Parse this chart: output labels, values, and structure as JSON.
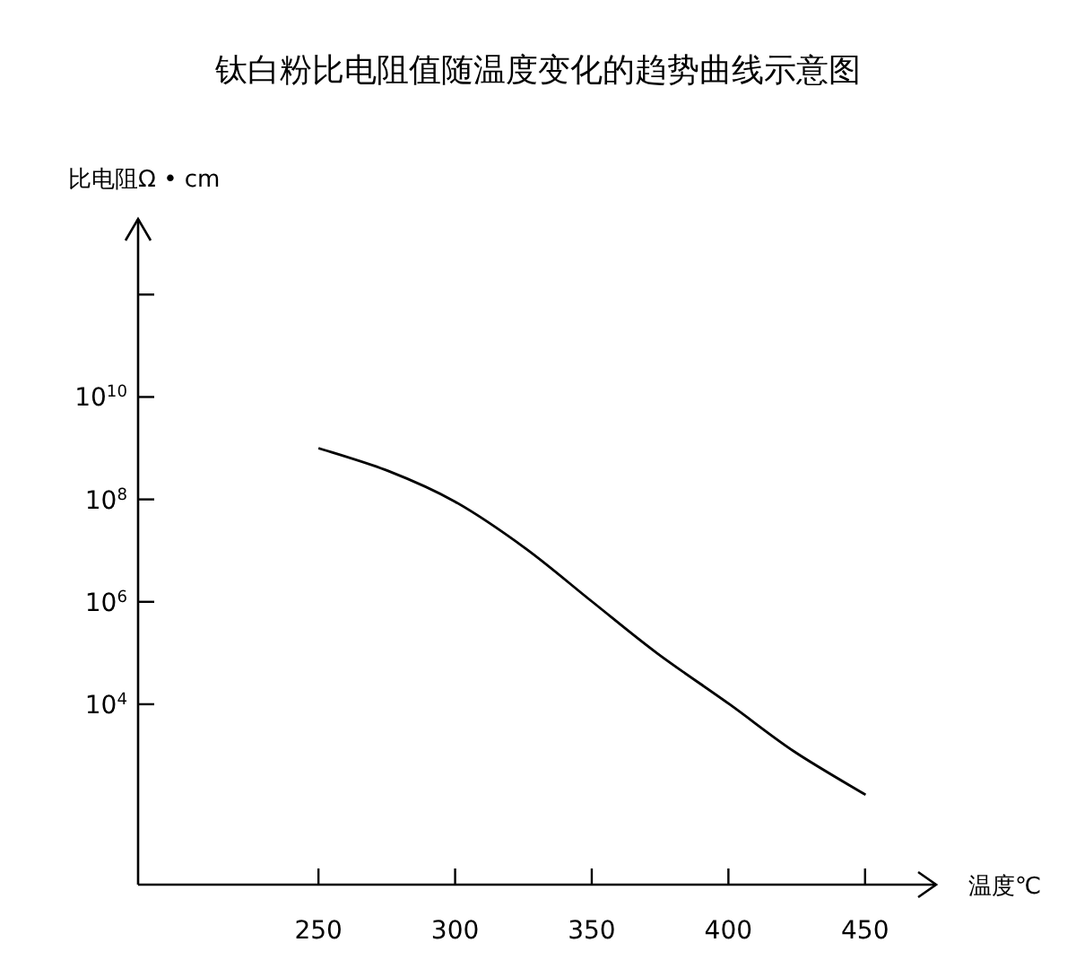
{
  "chart_data": {
    "type": "line",
    "title": "钛白粉比电阻值随温度变化的趋势曲线示意图",
    "xlabel": "温度℃",
    "ylabel": "比电阻Ω • cm",
    "log": "y",
    "x": [
      250,
      275.5,
      300,
      325.8,
      350.2,
      373.8,
      400.4,
      424,
      450.2
    ],
    "series": [
      {
        "color": "#000000",
        "values": [
          1000000000.0,
          360000000.0,
          90000000.0,
          11000000.0,
          1000000.0,
          100000.0,
          10000.0,
          1200.0,
          170.0
        ]
      }
    ],
    "xlim": [
      184,
      476
    ],
    "ylim": [
      3,
      30000000000000.0
    ],
    "xticks": [
      250,
      300,
      350,
      400,
      450
    ],
    "yticks": [
      {
        "value": 10000.0,
        "label": "10$^{4}$"
      },
      {
        "value": 1000000.0,
        "label": "10$^{6}$"
      },
      {
        "value": 100000000.0,
        "label": "10$^{8}$"
      },
      {
        "value": 10000000000.0,
        "label": "10$^{10}$"
      },
      {
        "value": 1000000000000.0,
        "label": null
      }
    ]
  }
}
